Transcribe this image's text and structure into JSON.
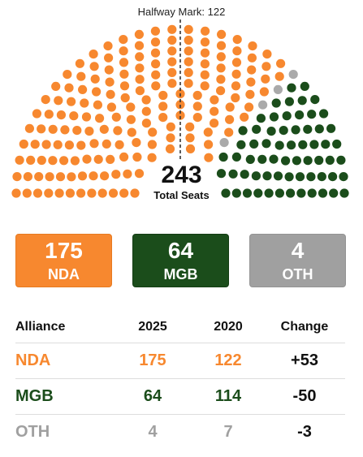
{
  "chart_data": {
    "type": "parliament",
    "total_seats": 243,
    "total_label": "Total Seats",
    "halfway_label": "Halfway Mark: 122",
    "halfway": 122,
    "series": [
      {
        "name": "NDA",
        "seats": 175,
        "color": "#F7882F"
      },
      {
        "name": "OTH",
        "seats": 4,
        "color": "#AAAAAA"
      },
      {
        "name": "MGB",
        "seats": 64,
        "color": "#1B4D1B"
      }
    ]
  },
  "cards": [
    {
      "label": "NDA",
      "value": "175",
      "color": "#F7882F"
    },
    {
      "label": "MGB",
      "value": "64",
      "color": "#1B4D1B"
    },
    {
      "label": "OTH",
      "value": "4",
      "color": "#A0A0A0"
    }
  ],
  "table": {
    "headers": {
      "alliance": "Alliance",
      "y2025": "2025",
      "y2020": "2020",
      "change": "Change"
    },
    "rows": [
      {
        "name": "NDA",
        "y2025": "175",
        "y2020": "122",
        "change": "+53",
        "color": "#F7882F"
      },
      {
        "name": "MGB",
        "y2025": "64",
        "y2020": "114",
        "change": "-50",
        "color": "#1B4D1B"
      },
      {
        "name": "OTH",
        "y2025": "4",
        "y2020": "7",
        "change": "-3",
        "color": "#A0A0A0"
      }
    ]
  }
}
